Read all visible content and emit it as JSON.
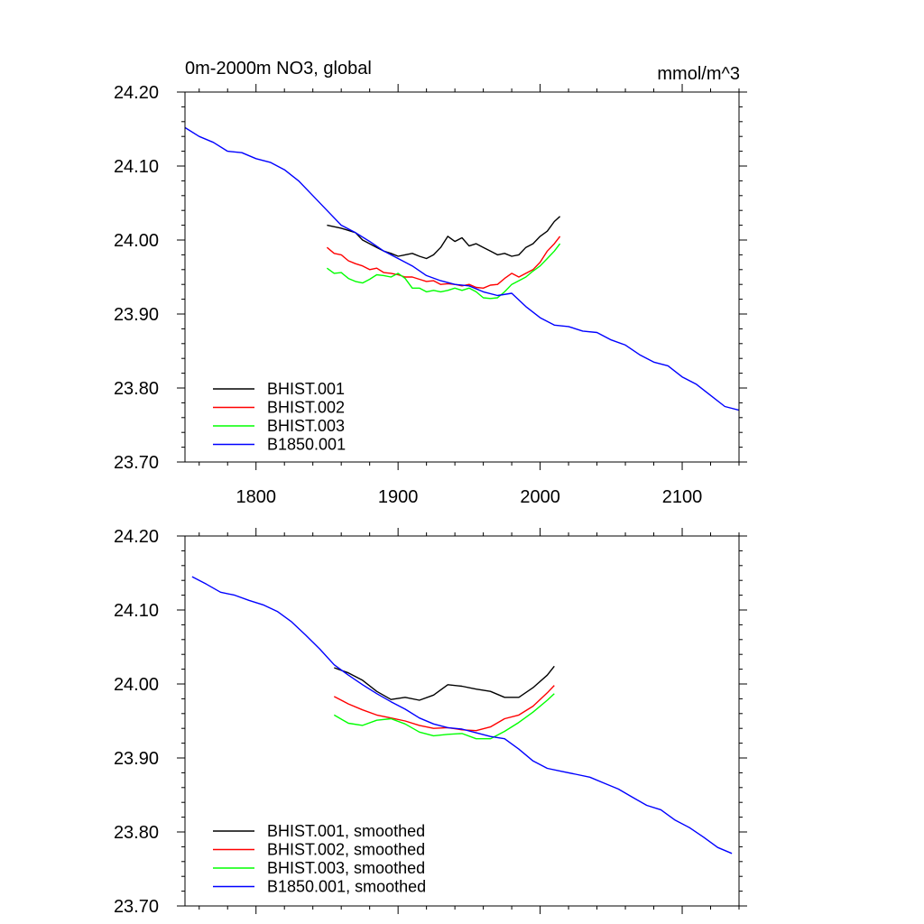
{
  "chart_data": [
    {
      "type": "line",
      "title_left": "0m-2000m NO3, global",
      "title_right": "mmol/m^3",
      "xlim": [
        1750,
        2140
      ],
      "ylim": [
        23.7,
        24.2
      ],
      "x_ticks": [
        1800,
        1900,
        2000,
        2100
      ],
      "x_tick_labels": [
        "1800",
        "1900",
        "2000",
        "2100"
      ],
      "y_ticks": [
        23.7,
        23.8,
        23.9,
        24.0,
        24.1,
        24.2
      ],
      "y_tick_labels": [
        "23.70",
        "23.80",
        "23.90",
        "24.00",
        "24.10",
        "24.20"
      ],
      "legend_position": "bottom-left",
      "series": [
        {
          "name": "BHIST.001",
          "color": "#000000",
          "points": [
            [
              1850,
              24.02
            ],
            [
              1860,
              24.016
            ],
            [
              1870,
              24.01
            ],
            [
              1875,
              24.0
            ],
            [
              1880,
              23.995
            ],
            [
              1885,
              23.99
            ],
            [
              1890,
              23.985
            ],
            [
              1895,
              23.982
            ],
            [
              1900,
              23.978
            ],
            [
              1905,
              23.98
            ],
            [
              1910,
              23.982
            ],
            [
              1915,
              23.978
            ],
            [
              1920,
              23.975
            ],
            [
              1925,
              23.98
            ],
            [
              1930,
              23.99
            ],
            [
              1935,
              24.005
            ],
            [
              1940,
              23.998
            ],
            [
              1945,
              24.003
            ],
            [
              1950,
              23.992
            ],
            [
              1955,
              23.995
            ],
            [
              1960,
              23.99
            ],
            [
              1965,
              23.985
            ],
            [
              1970,
              23.98
            ],
            [
              1975,
              23.982
            ],
            [
              1980,
              23.978
            ],
            [
              1985,
              23.98
            ],
            [
              1990,
              23.99
            ],
            [
              1995,
              23.995
            ],
            [
              2000,
              24.005
            ],
            [
              2005,
              24.012
            ],
            [
              2010,
              24.025
            ],
            [
              2014,
              24.032
            ]
          ]
        },
        {
          "name": "BHIST.002",
          "color": "#ff0000",
          "points": [
            [
              1850,
              23.99
            ],
            [
              1855,
              23.982
            ],
            [
              1860,
              23.98
            ],
            [
              1865,
              23.972
            ],
            [
              1870,
              23.968
            ],
            [
              1875,
              23.965
            ],
            [
              1880,
              23.96
            ],
            [
              1885,
              23.962
            ],
            [
              1890,
              23.956
            ],
            [
              1895,
              23.955
            ],
            [
              1900,
              23.953
            ],
            [
              1905,
              23.95
            ],
            [
              1910,
              23.95
            ],
            [
              1915,
              23.947
            ],
            [
              1920,
              23.944
            ],
            [
              1925,
              23.945
            ],
            [
              1930,
              23.94
            ],
            [
              1935,
              23.941
            ],
            [
              1940,
              23.94
            ],
            [
              1945,
              23.938
            ],
            [
              1950,
              23.94
            ],
            [
              1955,
              23.936
            ],
            [
              1960,
              23.935
            ],
            [
              1965,
              23.939
            ],
            [
              1970,
              23.94
            ],
            [
              1975,
              23.948
            ],
            [
              1980,
              23.955
            ],
            [
              1985,
              23.95
            ],
            [
              1990,
              23.955
            ],
            [
              1995,
              23.96
            ],
            [
              2000,
              23.97
            ],
            [
              2005,
              23.985
            ],
            [
              2010,
              23.995
            ],
            [
              2014,
              24.005
            ]
          ]
        },
        {
          "name": "BHIST.003",
          "color": "#00ff00",
          "points": [
            [
              1850,
              23.962
            ],
            [
              1855,
              23.955
            ],
            [
              1860,
              23.956
            ],
            [
              1865,
              23.948
            ],
            [
              1870,
              23.944
            ],
            [
              1875,
              23.942
            ],
            [
              1880,
              23.947
            ],
            [
              1885,
              23.953
            ],
            [
              1890,
              23.952
            ],
            [
              1895,
              23.95
            ],
            [
              1900,
              23.955
            ],
            [
              1905,
              23.948
            ],
            [
              1910,
              23.935
            ],
            [
              1915,
              23.935
            ],
            [
              1920,
              23.93
            ],
            [
              1925,
              23.932
            ],
            [
              1930,
              23.93
            ],
            [
              1935,
              23.932
            ],
            [
              1940,
              23.935
            ],
            [
              1945,
              23.932
            ],
            [
              1950,
              23.935
            ],
            [
              1955,
              23.93
            ],
            [
              1960,
              23.922
            ],
            [
              1965,
              23.921
            ],
            [
              1970,
              23.922
            ],
            [
              1975,
              23.93
            ],
            [
              1980,
              23.94
            ],
            [
              1985,
              23.945
            ],
            [
              1990,
              23.95
            ],
            [
              1995,
              23.958
            ],
            [
              2000,
              23.965
            ],
            [
              2005,
              23.975
            ],
            [
              2010,
              23.985
            ],
            [
              2014,
              23.995
            ]
          ]
        },
        {
          "name": "B1850.001",
          "color": "#0000ff",
          "points": [
            [
              1750,
              24.152
            ],
            [
              1760,
              24.14
            ],
            [
              1770,
              24.132
            ],
            [
              1780,
              24.12
            ],
            [
              1790,
              24.118
            ],
            [
              1800,
              24.11
            ],
            [
              1810,
              24.105
            ],
            [
              1820,
              24.095
            ],
            [
              1830,
              24.08
            ],
            [
              1840,
              24.06
            ],
            [
              1850,
              24.04
            ],
            [
              1860,
              24.02
            ],
            [
              1870,
              24.01
            ],
            [
              1880,
              23.998
            ],
            [
              1890,
              23.985
            ],
            [
              1900,
              23.975
            ],
            [
              1910,
              23.965
            ],
            [
              1920,
              23.952
            ],
            [
              1930,
              23.945
            ],
            [
              1940,
              23.94
            ],
            [
              1950,
              23.938
            ],
            [
              1960,
              23.93
            ],
            [
              1970,
              23.925
            ],
            [
              1980,
              23.928
            ],
            [
              1990,
              23.91
            ],
            [
              2000,
              23.895
            ],
            [
              2010,
              23.885
            ],
            [
              2020,
              23.883
            ],
            [
              2030,
              23.877
            ],
            [
              2040,
              23.875
            ],
            [
              2050,
              23.865
            ],
            [
              2060,
              23.858
            ],
            [
              2070,
              23.845
            ],
            [
              2080,
              23.835
            ],
            [
              2090,
              23.83
            ],
            [
              2100,
              23.815
            ],
            [
              2110,
              23.805
            ],
            [
              2120,
              23.79
            ],
            [
              2130,
              23.775
            ],
            [
              2140,
              23.77
            ]
          ]
        }
      ]
    },
    {
      "type": "line",
      "title_left": "",
      "title_right": "",
      "xlim": [
        1750,
        2140
      ],
      "ylim": [
        23.7,
        24.2
      ],
      "x_ticks": [
        1800,
        1900,
        2000,
        2100
      ],
      "x_tick_labels": [],
      "y_ticks": [
        23.7,
        23.8,
        23.9,
        24.0,
        24.1,
        24.2
      ],
      "y_tick_labels": [
        "23.70",
        "23.80",
        "23.90",
        "24.00",
        "24.10",
        "24.20"
      ],
      "legend_position": "bottom-left",
      "series": [
        {
          "name": "BHIST.001, smoothed",
          "color": "#000000",
          "points": [
            [
              1855,
              24.022
            ],
            [
              1865,
              24.015
            ],
            [
              1875,
              24.005
            ],
            [
              1885,
              23.99
            ],
            [
              1895,
              23.979
            ],
            [
              1905,
              23.982
            ],
            [
              1915,
              23.978
            ],
            [
              1925,
              23.985
            ],
            [
              1935,
              23.999
            ],
            [
              1945,
              23.997
            ],
            [
              1955,
              23.993
            ],
            [
              1965,
              23.99
            ],
            [
              1975,
              23.982
            ],
            [
              1985,
              23.982
            ],
            [
              1995,
              23.995
            ],
            [
              2005,
              24.012
            ],
            [
              2010,
              24.024
            ]
          ]
        },
        {
          "name": "BHIST.002, smoothed",
          "color": "#ff0000",
          "points": [
            [
              1855,
              23.983
            ],
            [
              1865,
              23.973
            ],
            [
              1875,
              23.965
            ],
            [
              1885,
              23.958
            ],
            [
              1895,
              23.954
            ],
            [
              1905,
              23.95
            ],
            [
              1915,
              23.944
            ],
            [
              1925,
              23.94
            ],
            [
              1935,
              23.941
            ],
            [
              1945,
              23.938
            ],
            [
              1955,
              23.937
            ],
            [
              1965,
              23.942
            ],
            [
              1975,
              23.953
            ],
            [
              1985,
              23.958
            ],
            [
              1995,
              23.97
            ],
            [
              2005,
              23.988
            ],
            [
              2010,
              23.998
            ]
          ]
        },
        {
          "name": "BHIST.003, smoothed",
          "color": "#00ff00",
          "points": [
            [
              1855,
              23.958
            ],
            [
              1865,
              23.947
            ],
            [
              1875,
              23.944
            ],
            [
              1885,
              23.951
            ],
            [
              1895,
              23.953
            ],
            [
              1905,
              23.946
            ],
            [
              1915,
              23.935
            ],
            [
              1925,
              23.93
            ],
            [
              1935,
              23.932
            ],
            [
              1945,
              23.933
            ],
            [
              1955,
              23.926
            ],
            [
              1965,
              23.926
            ],
            [
              1975,
              23.936
            ],
            [
              1985,
              23.948
            ],
            [
              1995,
              23.962
            ],
            [
              2005,
              23.978
            ],
            [
              2010,
              23.987
            ]
          ]
        },
        {
          "name": "B1850.001, smoothed",
          "color": "#0000ff",
          "points": [
            [
              1755,
              24.145
            ],
            [
              1765,
              24.135
            ],
            [
              1775,
              24.124
            ],
            [
              1785,
              24.12
            ],
            [
              1795,
              24.113
            ],
            [
              1805,
              24.107
            ],
            [
              1815,
              24.098
            ],
            [
              1825,
              24.084
            ],
            [
              1835,
              24.066
            ],
            [
              1845,
              24.047
            ],
            [
              1855,
              24.026
            ],
            [
              1865,
              24.012
            ],
            [
              1875,
              23.999
            ],
            [
              1885,
              23.987
            ],
            [
              1895,
              23.976
            ],
            [
              1905,
              23.966
            ],
            [
              1915,
              23.954
            ],
            [
              1925,
              23.946
            ],
            [
              1935,
              23.941
            ],
            [
              1945,
              23.939
            ],
            [
              1955,
              23.934
            ],
            [
              1965,
              23.929
            ],
            [
              1975,
              23.926
            ],
            [
              1985,
              23.912
            ],
            [
              1995,
              23.896
            ],
            [
              2005,
              23.886
            ],
            [
              2015,
              23.882
            ],
            [
              2025,
              23.878
            ],
            [
              2035,
              23.874
            ],
            [
              2045,
              23.866
            ],
            [
              2055,
              23.858
            ],
            [
              2065,
              23.847
            ],
            [
              2075,
              23.836
            ],
            [
              2085,
              23.83
            ],
            [
              2095,
              23.816
            ],
            [
              2105,
              23.806
            ],
            [
              2115,
              23.793
            ],
            [
              2125,
              23.779
            ],
            [
              2135,
              23.771
            ]
          ]
        }
      ]
    }
  ]
}
